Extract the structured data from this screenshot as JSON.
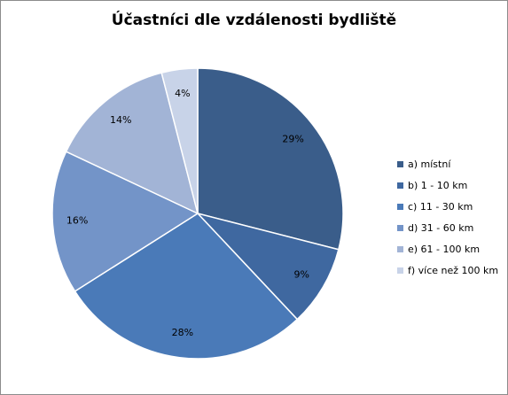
{
  "chart_data": {
    "type": "pie",
    "title": "Účastníci dle vzdálenosti bydliště",
    "categories": [
      "a) místní",
      "b) 1 - 10 km",
      "c) 11 - 30 km",
      "d) 31 - 60 km",
      "e) 61 - 100 km",
      "f) více než 100 km"
    ],
    "values": [
      29,
      9,
      28,
      16,
      14,
      4
    ],
    "value_labels": [
      "29%",
      "9%",
      "28%",
      "16%",
      "14%",
      "4%"
    ],
    "colors": [
      "#3a5d8a",
      "#3f68a0",
      "#4a7ab8",
      "#7394c8",
      "#a2b4d6",
      "#c8d3e8"
    ],
    "legend_position": "right",
    "grid": false
  }
}
